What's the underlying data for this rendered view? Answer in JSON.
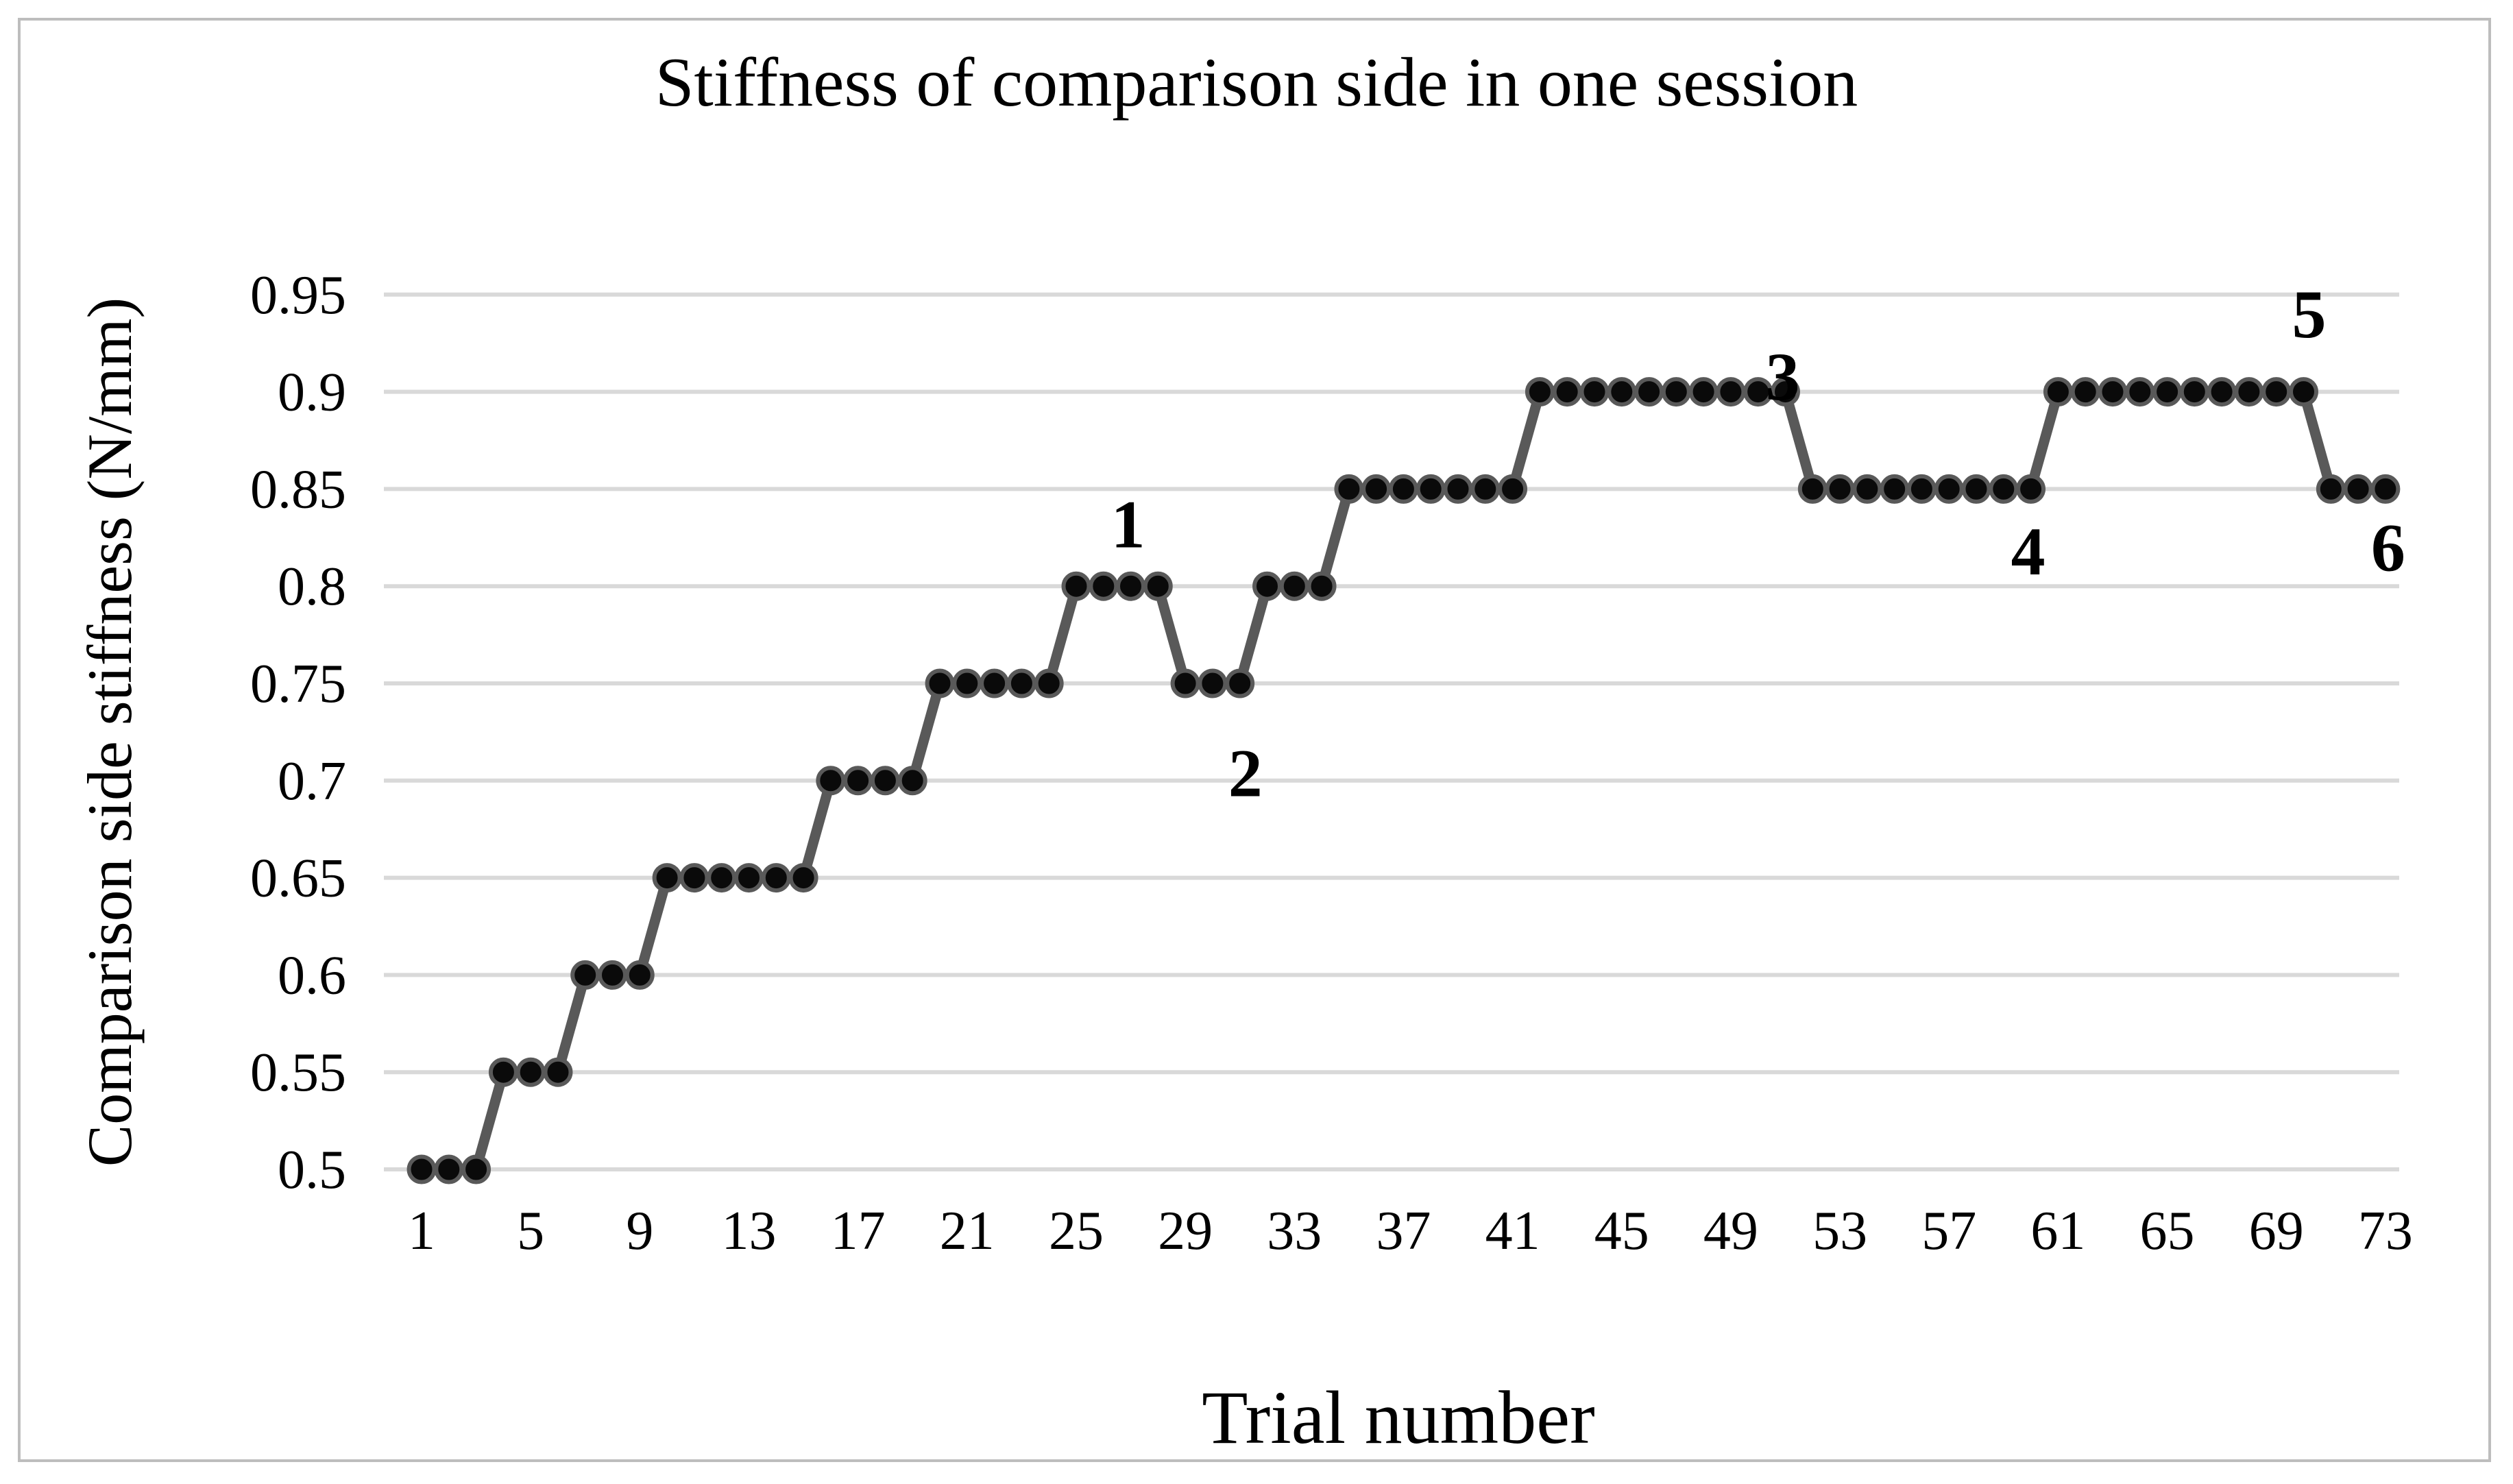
{
  "chart_data": {
    "type": "line",
    "title": "Stiffness of comparison side in one session",
    "xlabel": "Trial number",
    "ylabel": "Comparison side stiffness (N/mm)",
    "ylim": [
      0.5,
      0.95
    ],
    "xlim": [
      1,
      73
    ],
    "grid": "horizontal",
    "legend": "none",
    "x_ticks": [
      1,
      5,
      9,
      13,
      17,
      21,
      25,
      29,
      33,
      37,
      41,
      45,
      49,
      53,
      57,
      61,
      65,
      69,
      73
    ],
    "y_ticks": [
      "0.95",
      "0.9",
      "0.85",
      "0.8",
      "0.75",
      "0.7",
      "0.65",
      "0.6",
      "0.55",
      "0.5"
    ],
    "x": [
      1,
      2,
      3,
      4,
      5,
      6,
      7,
      8,
      9,
      10,
      11,
      12,
      13,
      14,
      15,
      16,
      17,
      18,
      19,
      20,
      21,
      22,
      23,
      24,
      25,
      26,
      27,
      28,
      29,
      30,
      31,
      32,
      33,
      34,
      35,
      36,
      37,
      38,
      39,
      40,
      41,
      42,
      43,
      44,
      45,
      46,
      47,
      48,
      49,
      50,
      51,
      52,
      53,
      54,
      55,
      56,
      57,
      58,
      59,
      60,
      61,
      62,
      63,
      64,
      65,
      66,
      67,
      68,
      69,
      70,
      71,
      72,
      73
    ],
    "values": [
      0.5,
      0.5,
      0.5,
      0.55,
      0.55,
      0.55,
      0.6,
      0.6,
      0.6,
      0.65,
      0.65,
      0.65,
      0.65,
      0.65,
      0.65,
      0.7,
      0.7,
      0.7,
      0.7,
      0.75,
      0.75,
      0.75,
      0.75,
      0.75,
      0.8,
      0.8,
      0.8,
      0.8,
      0.75,
      0.75,
      0.75,
      0.8,
      0.8,
      0.8,
      0.85,
      0.85,
      0.85,
      0.85,
      0.85,
      0.85,
      0.85,
      0.9,
      0.9,
      0.9,
      0.9,
      0.9,
      0.9,
      0.9,
      0.9,
      0.9,
      0.9,
      0.85,
      0.85,
      0.85,
      0.85,
      0.85,
      0.85,
      0.85,
      0.85,
      0.85,
      0.9,
      0.9,
      0.9,
      0.9,
      0.9,
      0.9,
      0.9,
      0.9,
      0.9,
      0.9,
      0.85,
      0.85,
      0.85
    ],
    "annotations": [
      {
        "label": "1",
        "trial": 26.9,
        "value": 0.832
      },
      {
        "label": "2",
        "trial": 31.2,
        "value": 0.704
      },
      {
        "label": "3",
        "trial": 50.9,
        "value": 0.908
      },
      {
        "label": "4",
        "trial": 59.9,
        "value": 0.818
      },
      {
        "label": "5",
        "trial": 70.2,
        "value": 0.94
      },
      {
        "label": "6",
        "trial": 73.1,
        "value": 0.82
      }
    ],
    "colors": {
      "line": "#595959",
      "marker_fill": "#0a0a0a",
      "marker_ring": "#595959",
      "gridline": "#d9d9d9",
      "text": "#000000",
      "frame_border": "#bdbdbd",
      "background": "#ffffff"
    }
  }
}
